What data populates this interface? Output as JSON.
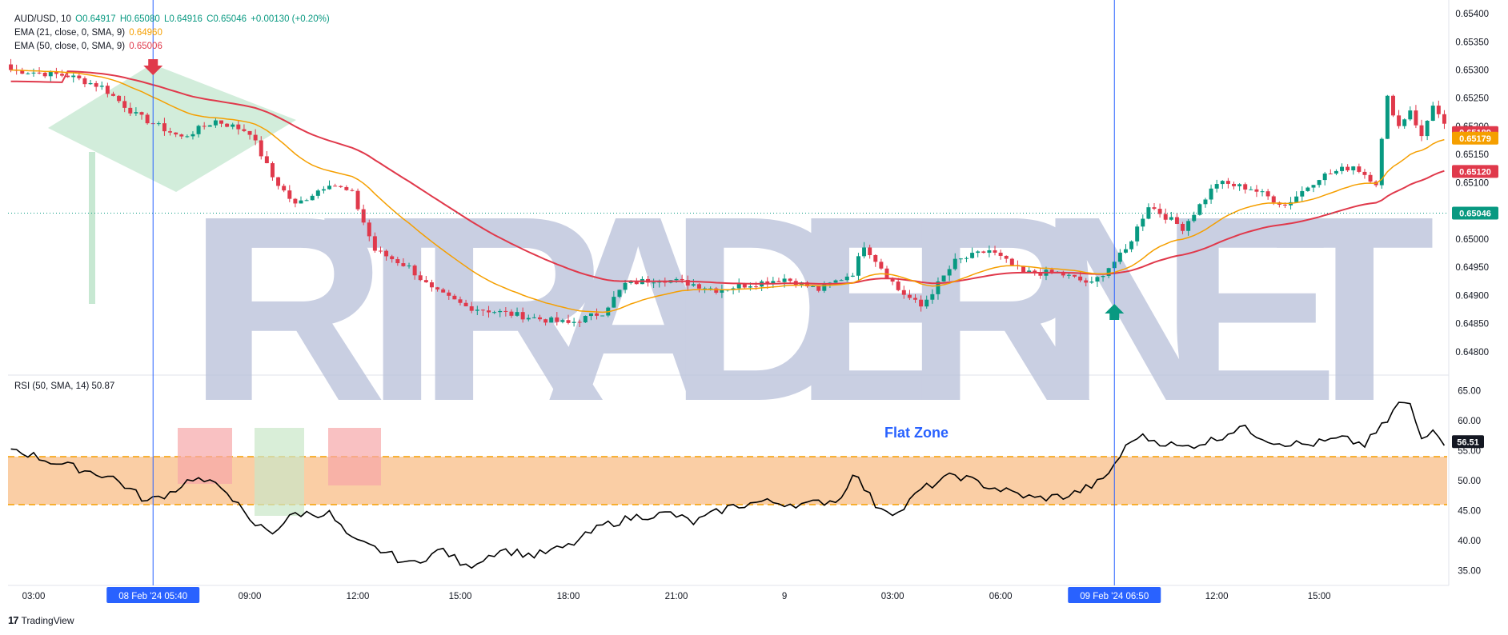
{
  "legend": {
    "symbol": "AUD/USD, 10",
    "open": "O0.64917",
    "high": "H0.65080",
    "low": "L0.64916",
    "close": "C0.65046",
    "change": "+0.00130 (+0.20%)",
    "ema21_label": "EMA (21, close, 0, SMA, 9)",
    "ema21_value": "0.64960",
    "ema50_label": "EMA (50, close, 0, SMA, 9)",
    "ema50_value": "0.65006",
    "rsi_label": "RSI (50, SMA, 14)",
    "rsi_value": "50.87"
  },
  "watermark": "IRTRADER.NET",
  "annotation": "Flat Zone",
  "footer": {
    "brand": "TradingView"
  },
  "colors": {
    "up": "#089981",
    "down": "#e0394b",
    "ema21": "#f59f00",
    "ema50": "#e0394b",
    "flat_zone": "#f9c595",
    "flat_zone_border": "#f59f00",
    "marker_line": "#2962ff",
    "watermark": "#b7bfd9",
    "rsi_line": "#000000"
  },
  "chart_data": {
    "type": "candlestick",
    "price_axis": {
      "ticks": [
        "0.65400",
        "0.65350",
        "0.65300",
        "0.65250",
        "0.65200",
        "0.65150",
        "0.65100",
        "0.65050",
        "0.65000",
        "0.64950",
        "0.64900",
        "0.64850",
        "0.64800"
      ],
      "range": [
        0.6476,
        0.6541
      ]
    },
    "price_labels": [
      {
        "text": "0.65189",
        "value": 0.65189,
        "color": "#e0394b"
      },
      {
        "text": "0.65179",
        "value": 0.65179,
        "color": "#f59f00"
      },
      {
        "text": "0.65120",
        "value": 0.6512,
        "color": "#e0394b"
      },
      {
        "text": "0.65046",
        "value": 0.65046,
        "color": "#089981"
      }
    ],
    "rsi_axis": {
      "ticks": [
        "65.00",
        "60.00",
        "55.00",
        "50.00",
        "45.00",
        "40.00",
        "35.00"
      ],
      "range": [
        32.5,
        67.5
      ],
      "flat_zone": [
        46,
        54
      ],
      "current_label": "56.51",
      "current_value": 56.51
    },
    "time_ticks": [
      "03:00",
      "06:00",
      "09:00",
      "12:00",
      "15:00",
      "18:00",
      "21:00",
      "9",
      "03:00",
      "06:00",
      "09:00",
      "12:00",
      "15:00"
    ],
    "markers": [
      {
        "label": "08 Feb '24   05:40",
        "bar": 25,
        "arrow": "down"
      },
      {
        "label": "09 Feb '24   06:50",
        "bar": 194,
        "arrow": "up"
      }
    ],
    "close_anchors": [
      [
        0,
        0.653
      ],
      [
        10,
        0.6529
      ],
      [
        16,
        0.6527
      ],
      [
        22,
        0.6522
      ],
      [
        26,
        0.652
      ],
      [
        30,
        0.6518
      ],
      [
        36,
        0.6521
      ],
      [
        42,
        0.6519
      ],
      [
        46,
        0.6511
      ],
      [
        50,
        0.6506
      ],
      [
        56,
        0.651
      ],
      [
        60,
        0.6508
      ],
      [
        64,
        0.6498
      ],
      [
        70,
        0.6495
      ],
      [
        74,
        0.6491
      ],
      [
        80,
        0.6488
      ],
      [
        86,
        0.6487
      ],
      [
        92,
        0.6486
      ],
      [
        98,
        0.6485
      ],
      [
        104,
        0.6487
      ],
      [
        108,
        0.6492
      ],
      [
        114,
        0.6493
      ],
      [
        120,
        0.6492
      ],
      [
        124,
        0.6491
      ],
      [
        130,
        0.6492
      ],
      [
        136,
        0.6493
      ],
      [
        142,
        0.6491
      ],
      [
        148,
        0.6494
      ],
      [
        150,
        0.6499
      ],
      [
        156,
        0.6491
      ],
      [
        160,
        0.6488
      ],
      [
        166,
        0.6496
      ],
      [
        172,
        0.6498
      ],
      [
        178,
        0.6494
      ],
      [
        184,
        0.6494
      ],
      [
        190,
        0.6492
      ],
      [
        196,
        0.6498
      ],
      [
        200,
        0.6506
      ],
      [
        206,
        0.6502
      ],
      [
        212,
        0.651
      ],
      [
        218,
        0.6509
      ],
      [
        224,
        0.6506
      ],
      [
        230,
        0.6511
      ],
      [
        236,
        0.6513
      ],
      [
        240,
        0.651
      ],
      [
        242,
        0.6525
      ],
      [
        244,
        0.652
      ],
      [
        246,
        0.6523
      ],
      [
        248,
        0.6518
      ],
      [
        250,
        0.6524
      ],
      [
        252,
        0.652
      ]
    ],
    "rsi_anchors": [
      [
        0,
        55.5
      ],
      [
        6,
        53.5
      ],
      [
        12,
        52.0
      ],
      [
        18,
        50.5
      ],
      [
        24,
        46.5
      ],
      [
        28,
        48.0
      ],
      [
        32,
        50.5
      ],
      [
        38,
        48.5
      ],
      [
        42,
        43.0
      ],
      [
        46,
        41.5
      ],
      [
        50,
        44.5
      ],
      [
        56,
        44.5
      ],
      [
        60,
        40.0
      ],
      [
        66,
        38.0
      ],
      [
        70,
        36.0
      ],
      [
        76,
        38.5
      ],
      [
        80,
        35.5
      ],
      [
        86,
        38.5
      ],
      [
        92,
        37.5
      ],
      [
        98,
        39.0
      ],
      [
        104,
        42.5
      ],
      [
        110,
        44.0
      ],
      [
        116,
        44.5
      ],
      [
        120,
        43.0
      ],
      [
        126,
        45.5
      ],
      [
        132,
        46.5
      ],
      [
        140,
        46.0
      ],
      [
        146,
        47.0
      ],
      [
        148,
        51.5
      ],
      [
        152,
        46.0
      ],
      [
        156,
        44.5
      ],
      [
        160,
        48.5
      ],
      [
        166,
        51.0
      ],
      [
        172,
        49.0
      ],
      [
        180,
        47.0
      ],
      [
        186,
        47.5
      ],
      [
        192,
        50.0
      ],
      [
        196,
        55.5
      ],
      [
        198,
        57.5
      ],
      [
        202,
        56.5
      ],
      [
        206,
        55.5
      ],
      [
        212,
        57.0
      ],
      [
        216,
        59.0
      ],
      [
        222,
        56.5
      ],
      [
        228,
        56.0
      ],
      [
        234,
        57.0
      ],
      [
        238,
        56.0
      ],
      [
        242,
        60.0
      ],
      [
        244,
        63.0
      ],
      [
        246,
        62.5
      ],
      [
        248,
        57.0
      ],
      [
        250,
        59.0
      ],
      [
        252,
        56.5
      ]
    ],
    "bar_count": 253
  }
}
